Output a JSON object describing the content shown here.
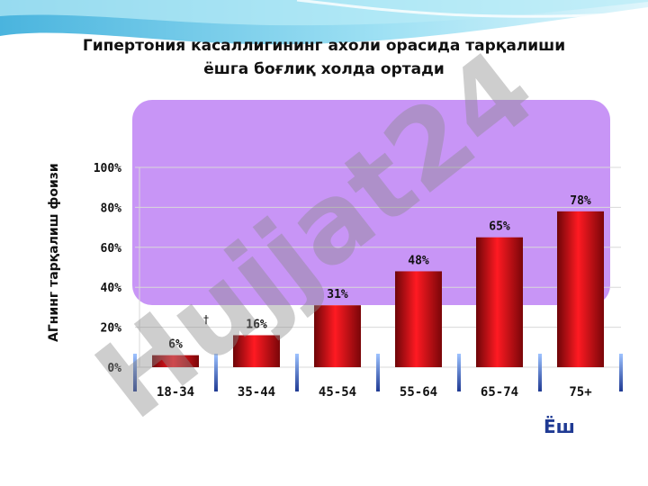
{
  "title_line1": "Гипертония  касаллигининг  ахоли  орасида  тарқалиши",
  "title_line2": "ёшга  боғлиқ  холда  ортади",
  "dagger_mark": "†",
  "watermark_text": "Hujjat24",
  "colors": {
    "bar": "#e0121a",
    "panel": "#be82f5",
    "xlabel": "#1f3a93",
    "wave": "#5fc6e8"
  },
  "chart_data": {
    "type": "bar",
    "title": "Гипертония  касаллигининг  ахоли  орасида  тарқалиши ёшга  боғлиқ  холда  ортади",
    "xlabel": "Ёш",
    "ylabel": "АГнинг тарқалиш фоизи",
    "categories": [
      "18-34",
      "35-44",
      "45-54",
      "55-64",
      "65-74",
      "75+"
    ],
    "values": [
      6,
      16,
      31,
      48,
      65,
      78
    ],
    "data_labels": [
      "6%",
      "16%",
      "31%",
      "48%",
      "65%",
      "78%"
    ],
    "yticks": [
      "0%",
      "20%",
      "40%",
      "60%",
      "80%",
      "100%"
    ],
    "ylim": [
      0,
      100
    ],
    "grid": true
  }
}
